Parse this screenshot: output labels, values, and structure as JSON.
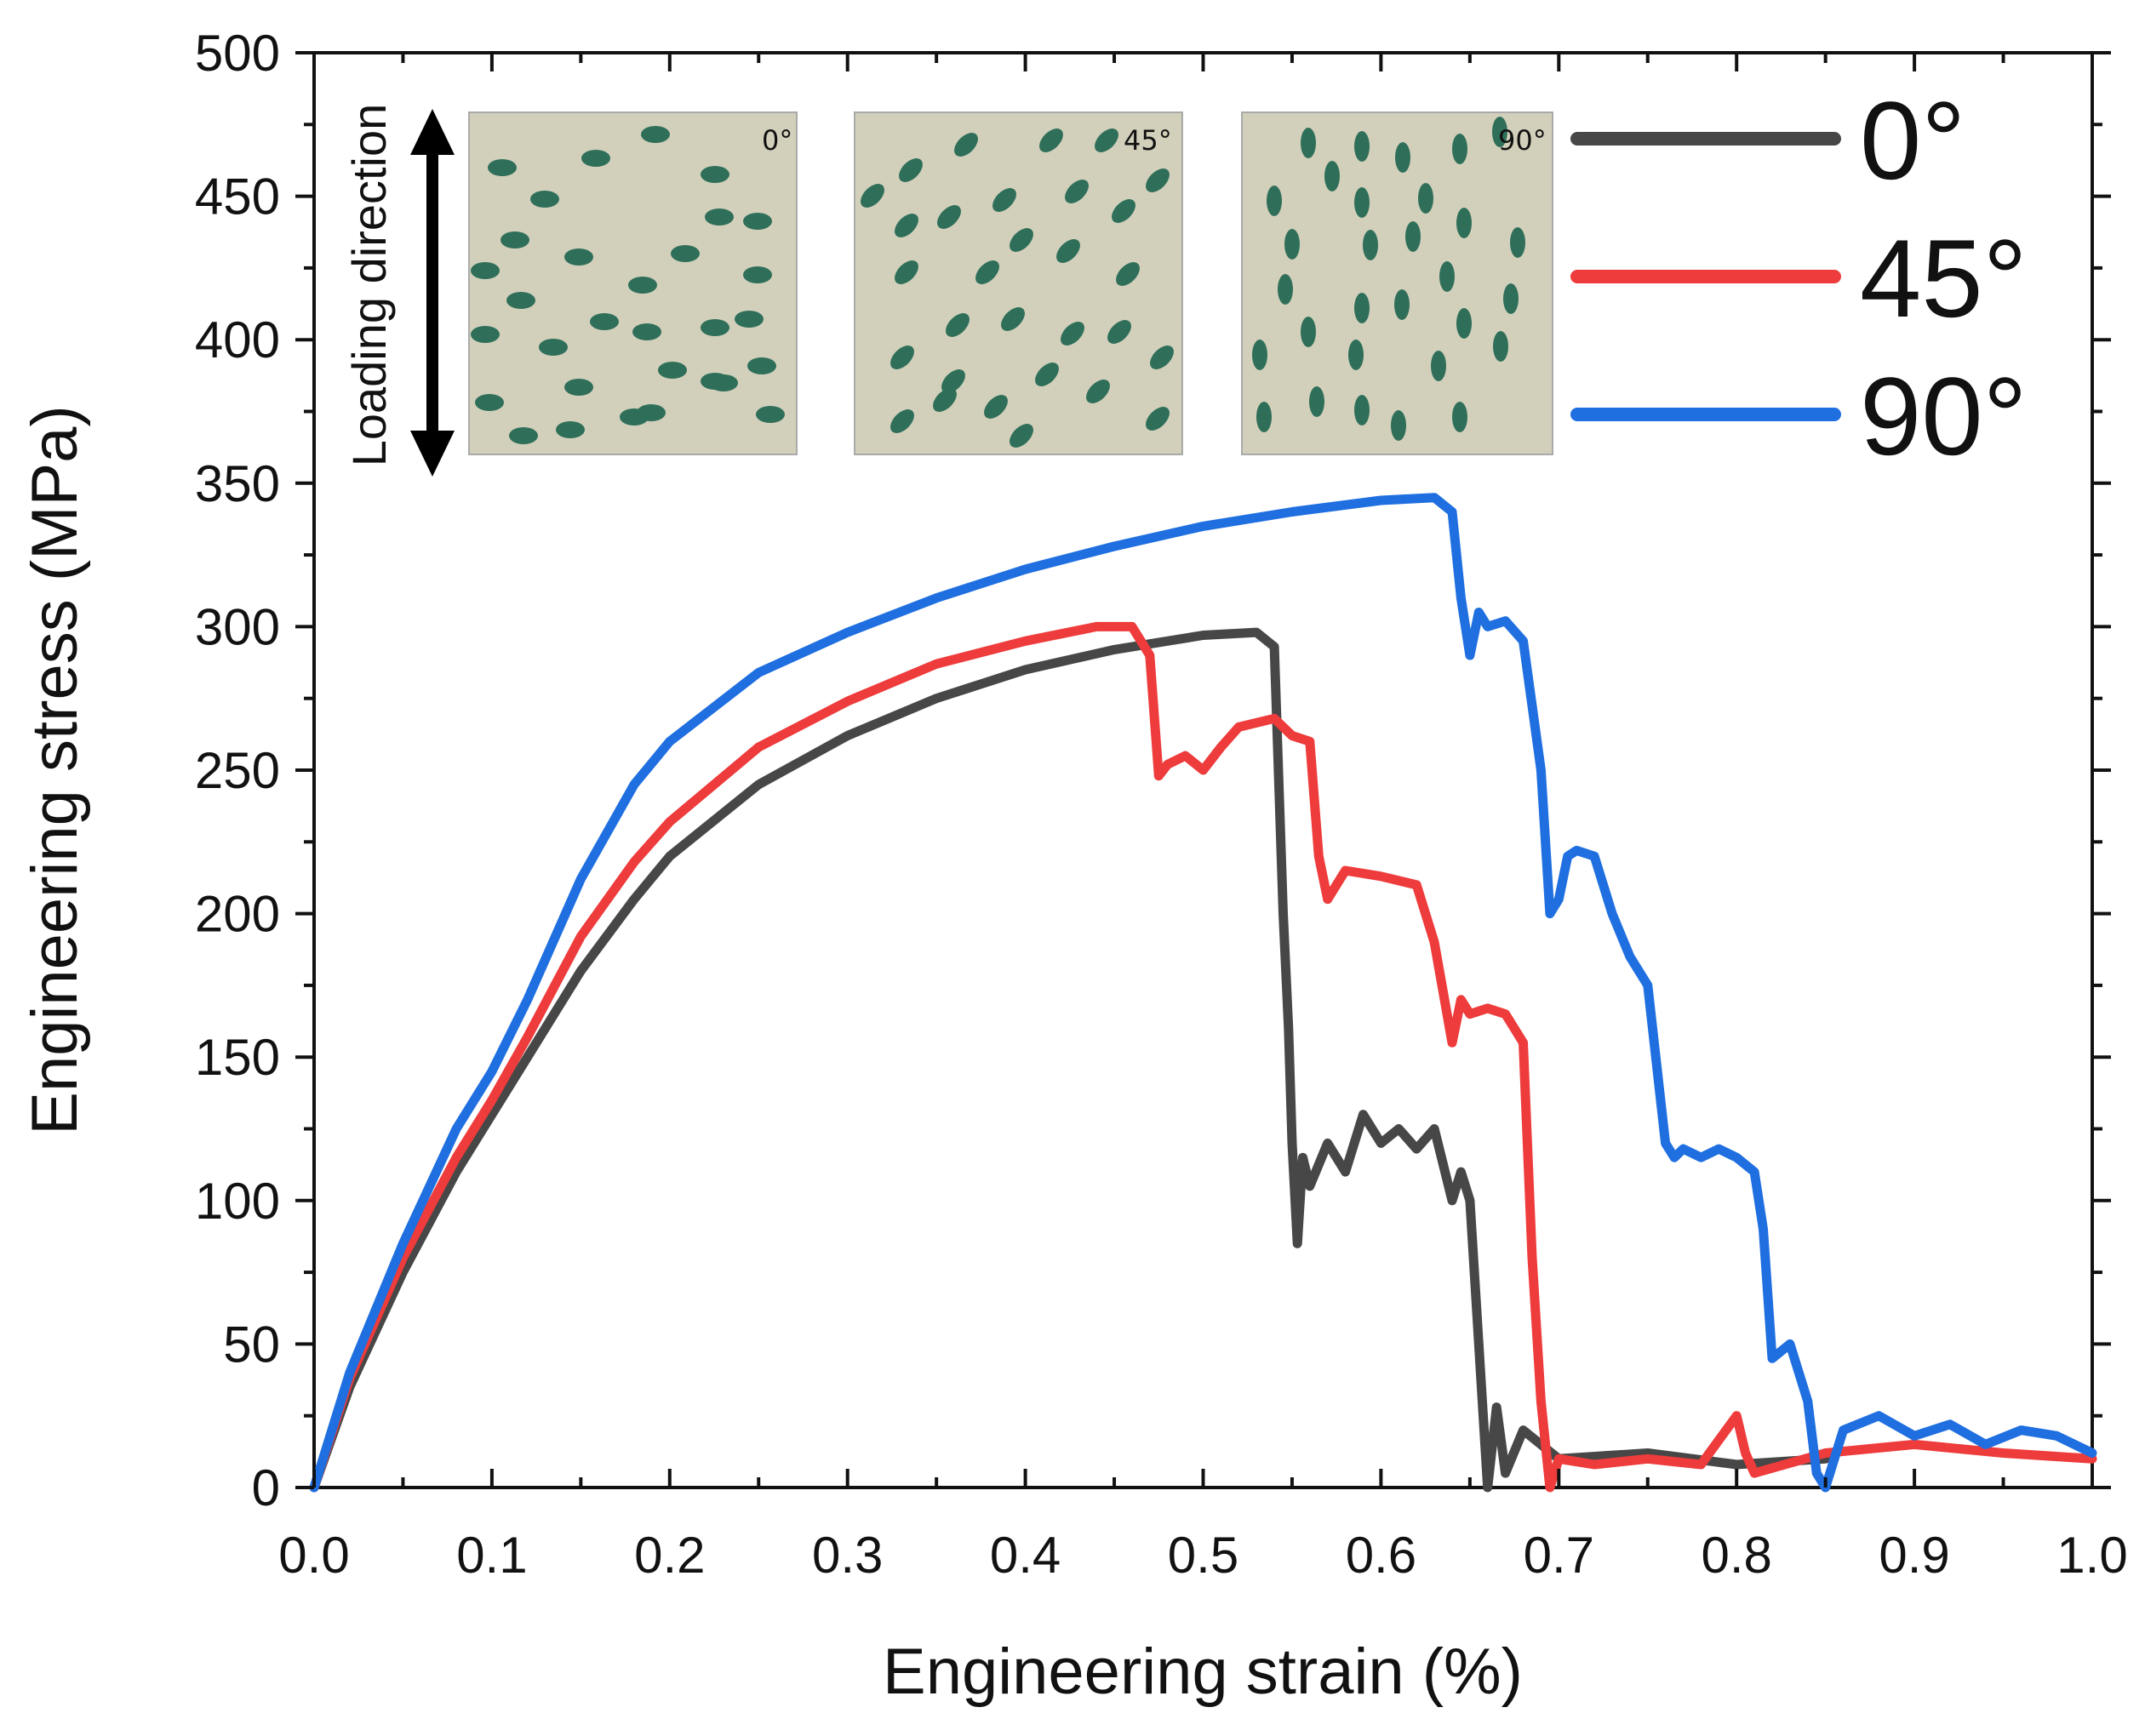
{
  "chart_data": {
    "type": "line",
    "xlabel": "Engineering strain (%)",
    "ylabel": "Engineering stress (MPa)",
    "xlim": [
      0.0,
      1.0
    ],
    "ylim": [
      0,
      500
    ],
    "x_ticks": [
      "0.0",
      "0.1",
      "0.2",
      "0.3",
      "0.4",
      "0.5",
      "0.6",
      "0.7",
      "0.8",
      "0.9",
      "1.0"
    ],
    "y_ticks": [
      "0",
      "50",
      "100",
      "150",
      "200",
      "250",
      "300",
      "350",
      "400",
      "450",
      "500"
    ],
    "legend_position": "top-right",
    "series": [
      {
        "name": "0°",
        "color": "#474747",
        "x": [
          0.0,
          0.02,
          0.05,
          0.08,
          0.1,
          0.12,
          0.15,
          0.18,
          0.2,
          0.25,
          0.3,
          0.35,
          0.4,
          0.45,
          0.5,
          0.53,
          0.54,
          0.545,
          0.548,
          0.55,
          0.553,
          0.556,
          0.56,
          0.57,
          0.58,
          0.59,
          0.6,
          0.61,
          0.62,
          0.63,
          0.64,
          0.645,
          0.65,
          0.655,
          0.66,
          0.665,
          0.67,
          0.68,
          0.7,
          0.75,
          0.8,
          0.85
        ],
        "y": [
          0,
          35,
          75,
          110,
          130,
          150,
          180,
          205,
          220,
          245,
          262,
          275,
          285,
          292,
          297,
          298,
          293,
          200,
          160,
          120,
          85,
          115,
          105,
          120,
          110,
          130,
          120,
          125,
          118,
          125,
          100,
          110,
          100,
          50,
          0,
          28,
          5,
          20,
          10,
          12,
          8,
          10
        ]
      },
      {
        "name": "45°",
        "color": "#ee3b3b",
        "x": [
          0.0,
          0.02,
          0.05,
          0.08,
          0.1,
          0.12,
          0.15,
          0.18,
          0.2,
          0.25,
          0.3,
          0.35,
          0.4,
          0.44,
          0.46,
          0.47,
          0.475,
          0.48,
          0.49,
          0.5,
          0.51,
          0.52,
          0.54,
          0.55,
          0.56,
          0.565,
          0.57,
          0.58,
          0.6,
          0.62,
          0.63,
          0.64,
          0.645,
          0.65,
          0.66,
          0.67,
          0.68,
          0.685,
          0.69,
          0.695,
          0.7,
          0.72,
          0.75,
          0.78,
          0.8,
          0.805,
          0.81,
          0.85,
          0.9,
          0.95,
          1.0
        ],
        "y": [
          0,
          38,
          80,
          115,
          135,
          157,
          192,
          218,
          232,
          258,
          274,
          287,
          295,
          300,
          300,
          290,
          248,
          252,
          255,
          250,
          258,
          265,
          268,
          262,
          260,
          220,
          205,
          215,
          213,
          210,
          190,
          155,
          170,
          165,
          167,
          165,
          155,
          80,
          30,
          0,
          10,
          8,
          10,
          8,
          25,
          12,
          5,
          12,
          15,
          12,
          10
        ]
      },
      {
        "name": "90°",
        "color": "#1f6fe0",
        "x": [
          0.0,
          0.02,
          0.05,
          0.08,
          0.1,
          0.12,
          0.15,
          0.18,
          0.2,
          0.25,
          0.3,
          0.35,
          0.4,
          0.45,
          0.5,
          0.55,
          0.6,
          0.63,
          0.64,
          0.645,
          0.65,
          0.655,
          0.66,
          0.67,
          0.68,
          0.69,
          0.695,
          0.7,
          0.705,
          0.71,
          0.72,
          0.73,
          0.74,
          0.75,
          0.76,
          0.765,
          0.77,
          0.78,
          0.79,
          0.8,
          0.81,
          0.815,
          0.82,
          0.83,
          0.84,
          0.845,
          0.85,
          0.86,
          0.88,
          0.9,
          0.92,
          0.94,
          0.96,
          0.98,
          1.0
        ],
        "y": [
          0,
          40,
          85,
          125,
          145,
          170,
          212,
          245,
          260,
          284,
          298,
          310,
          320,
          328,
          335,
          340,
          344,
          345,
          340,
          310,
          290,
          305,
          300,
          302,
          295,
          250,
          200,
          205,
          220,
          222,
          220,
          200,
          185,
          175,
          120,
          115,
          118,
          115,
          118,
          115,
          110,
          90,
          45,
          50,
          30,
          5,
          0,
          20,
          25,
          18,
          22,
          15,
          20,
          18,
          12
        ]
      }
    ],
    "legend": [
      "0°",
      "45°",
      "90°"
    ],
    "inset": {
      "loading_label": "Loading direction",
      "panels": [
        "0°",
        "45°",
        "90°"
      ]
    }
  }
}
